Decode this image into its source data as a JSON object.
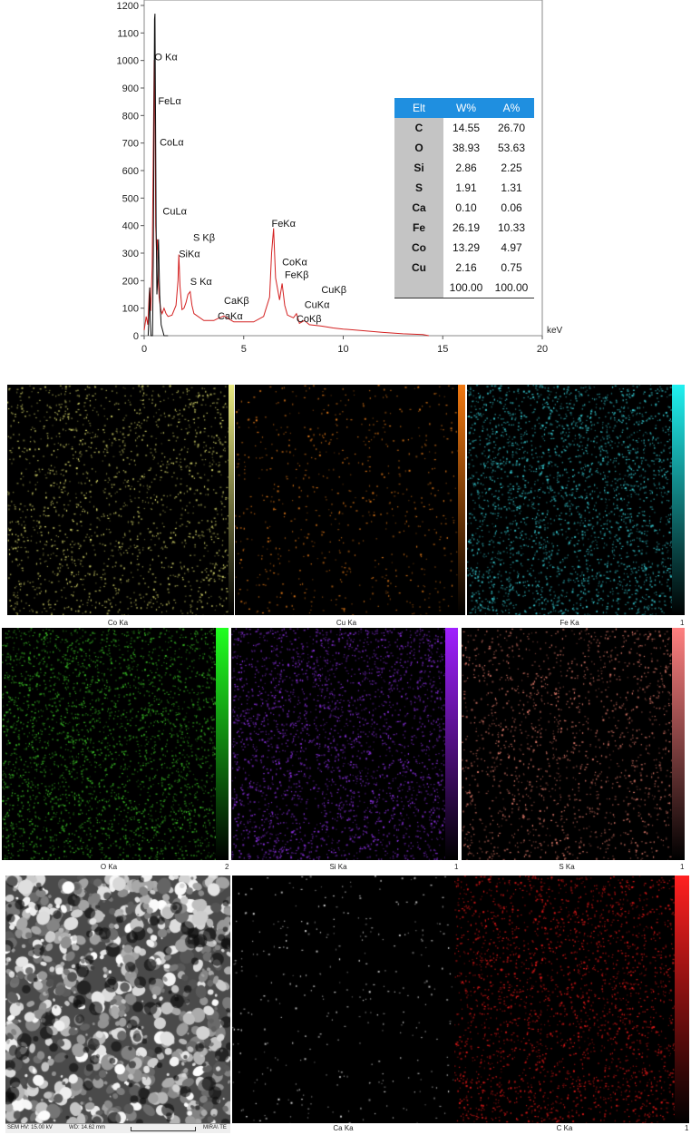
{
  "chart_data": {
    "type": "line",
    "title": "",
    "xlabel": "keV",
    "ylabel": "",
    "xlim": [
      0,
      20
    ],
    "ylim": [
      0,
      1200
    ],
    "xticks": [
      0,
      5,
      10,
      15,
      20
    ],
    "yticks": [
      0,
      100,
      200,
      300,
      400,
      500,
      600,
      700,
      800,
      900,
      1000,
      1100,
      1200
    ],
    "series": [
      {
        "color": "#d42020",
        "x": [
          0.0,
          0.1,
          0.18,
          0.25,
          0.28,
          0.33,
          0.4,
          0.45,
          0.5,
          0.52,
          0.55,
          0.58,
          0.62,
          0.66,
          0.7,
          0.75,
          0.8,
          0.85,
          0.9,
          1.0,
          1.1,
          1.2,
          1.4,
          1.6,
          1.7,
          1.74,
          1.8,
          1.9,
          2.0,
          2.1,
          2.2,
          2.31,
          2.4,
          2.5,
          3.0,
          3.5,
          3.69,
          4.01,
          4.5,
          5.0,
          5.5,
          6.0,
          6.3,
          6.4,
          6.5,
          6.6,
          6.8,
          6.93,
          7.06,
          7.2,
          7.5,
          7.65,
          7.8,
          8.05,
          8.3,
          8.9,
          9.5,
          10.0,
          11.0,
          12.0,
          13.0,
          14.0,
          14.3
        ],
        "y": [
          20,
          70,
          40,
          150,
          175,
          90,
          250,
          620,
          1000,
          1000,
          760,
          400,
          310,
          350,
          210,
          140,
          110,
          90,
          80,
          100,
          80,
          70,
          75,
          110,
          200,
          295,
          180,
          95,
          100,
          120,
          150,
          160,
          110,
          80,
          55,
          55,
          62,
          72,
          50,
          50,
          50,
          70,
          140,
          300,
          390,
          210,
          130,
          190,
          110,
          75,
          65,
          80,
          45,
          55,
          40,
          35,
          28,
          24,
          18,
          12,
          7,
          4,
          0
        ]
      },
      {
        "color": "#111111",
        "x": [
          0.2,
          0.26,
          0.28,
          0.3,
          0.34,
          0.42,
          0.46,
          0.5,
          0.52,
          0.54,
          0.6,
          0.64,
          0.68,
          0.7,
          0.72,
          0.74,
          0.78,
          0.85,
          1.0,
          1.2
        ],
        "y": [
          0,
          120,
          175,
          60,
          0,
          0,
          300,
          900,
          1150,
          1170,
          400,
          150,
          200,
          320,
          350,
          290,
          150,
          40,
          0,
          0
        ]
      }
    ],
    "peak_labels": [
      {
        "text": "O Kα",
        "x": 0.52,
        "y": 1000
      },
      {
        "text": "FeLα",
        "x": 0.7,
        "y": 840
      },
      {
        "text": "CoLα",
        "x": 0.78,
        "y": 690
      },
      {
        "text": "CuLα",
        "x": 0.93,
        "y": 440
      },
      {
        "text": "S Kβ",
        "x": 2.46,
        "y": 345
      },
      {
        "text": "SiKα",
        "x": 1.74,
        "y": 285
      },
      {
        "text": "S Kα",
        "x": 2.31,
        "y": 185
      },
      {
        "text": "CaKβ",
        "x": 4.01,
        "y": 115
      },
      {
        "text": "CaKα",
        "x": 3.69,
        "y": 60
      },
      {
        "text": "FeKα",
        "x": 6.4,
        "y": 395
      },
      {
        "text": "CoKα",
        "x": 6.93,
        "y": 255
      },
      {
        "text": "FeKβ",
        "x": 7.06,
        "y": 210
      },
      {
        "text": "CuKβ",
        "x": 8.9,
        "y": 155
      },
      {
        "text": "CuKα",
        "x": 8.05,
        "y": 100
      },
      {
        "text": "CoKβ",
        "x": 7.65,
        "y": 50
      }
    ]
  },
  "composition_table": {
    "headers": [
      "Elt",
      "W%",
      "A%"
    ],
    "rows": [
      [
        "C",
        "14.55",
        "26.70"
      ],
      [
        "O",
        "38.93",
        "53.63"
      ],
      [
        "Si",
        "2.86",
        "2.25"
      ],
      [
        "S",
        "1.91",
        "1.31"
      ],
      [
        "Ca",
        "0.10",
        "0.06"
      ],
      [
        "Fe",
        "26.19",
        "10.33"
      ],
      [
        "Co",
        "13.29",
        "4.97"
      ],
      [
        "Cu",
        "2.16",
        "0.75"
      ],
      [
        "",
        "100.00",
        "100.00"
      ]
    ]
  },
  "maps": [
    {
      "id": "co",
      "label": "Co Ka",
      "dot_color": "#d6d66a",
      "scale_color": "#e8e880",
      "density": 0.55
    },
    {
      "id": "cu",
      "label": "Cu Ka",
      "dot_color": "#e07818",
      "scale_color": "#f07810",
      "density": 0.22
    },
    {
      "id": "fe",
      "label": "Fe Ka",
      "max": "1",
      "dot_color": "#35c8d0",
      "scale_color": "#20f0f0",
      "density": 0.95
    },
    {
      "id": "o",
      "label": "O  Ka",
      "max": "2",
      "dot_color": "#38b825",
      "scale_color": "#20ff20",
      "density": 0.95
    },
    {
      "id": "si",
      "label": "Si Ka",
      "max": "1",
      "dot_color": "#8a30e0",
      "scale_color": "#a020ff",
      "density": 0.9
    },
    {
      "id": "s",
      "label": "S  Ka",
      "max": "1",
      "dot_color": "#e07a6a",
      "scale_color": "#ff8080",
      "density": 0.55
    },
    {
      "id": "ca",
      "label": "Ca Ka",
      "dot_color": "#d8d8d8",
      "scale_color": "#ffffff",
      "density": 0.1
    },
    {
      "id": "c",
      "label": "C  Ka",
      "max": "1",
      "dot_color": "#e01818",
      "scale_color": "#ff2020",
      "density": 0.75
    }
  ],
  "sem_info": {
    "hv": "SEM HV: 15.00 kV",
    "wd": "WD: 14.62 mm",
    "instrument": "MIRA\\ TE"
  }
}
